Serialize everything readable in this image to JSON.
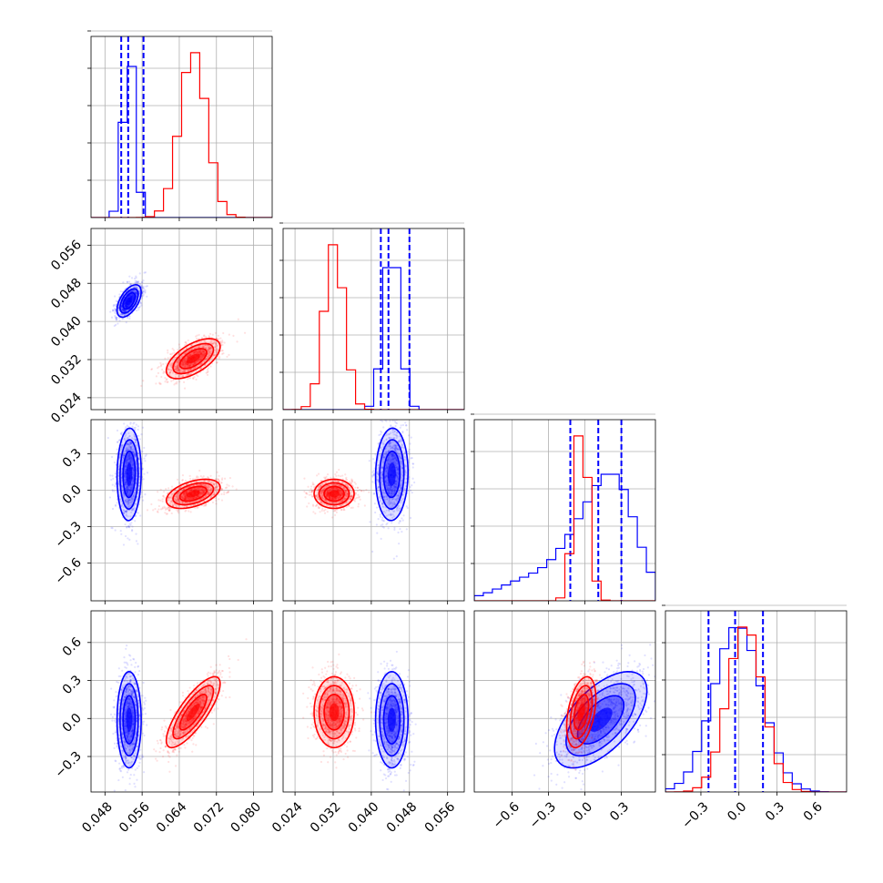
{
  "chart_data": {
    "type": "corner",
    "grid": true,
    "colors": {
      "blue": "#0000ff",
      "red": "#ff0000"
    },
    "params": [
      {
        "range": [
          0.045,
          0.084
        ],
        "ticks": [
          0.048,
          0.056,
          0.064,
          0.072,
          0.08
        ],
        "tick_labels": [
          "0.048",
          "0.056",
          "0.064",
          "0.072",
          "0.080"
        ]
      },
      {
        "range": [
          0.0215,
          0.0595
        ],
        "ticks": [
          0.024,
          0.032,
          0.04,
          0.048,
          0.056
        ],
        "tick_labels": [
          "0.024",
          "0.032",
          "0.040",
          "0.048",
          "0.056"
        ]
      },
      {
        "range": [
          -0.91,
          0.58
        ],
        "ticks": [
          -0.6,
          -0.3,
          0.0,
          0.3
        ],
        "tick_labels": [
          "−0.6",
          "−0.3",
          "0.0",
          "0.3"
        ]
      },
      {
        "range": [
          -0.58,
          0.85
        ],
        "ticks": [
          -0.3,
          0.0,
          0.3,
          0.6
        ],
        "tick_labels": [
          "−0.3",
          "0.0",
          "0.3",
          "0.6"
        ]
      }
    ],
    "series": [
      {
        "color": "blue",
        "mean": [
          0.0532,
          0.0443,
          0.13,
          -0.01
        ],
        "std": [
          0.0013,
          0.0017,
          0.19,
          0.19
        ],
        "corr": [
          [
            1,
            0.55,
            0.05,
            0.0
          ],
          [
            0.55,
            1,
            0.05,
            0.0
          ],
          [
            0.05,
            0.05,
            1,
            0.6
          ],
          [
            0.0,
            0.0,
            0.6,
            1
          ]
        ],
        "quantiles": [
          [
            0.0515,
            0.053,
            0.0563
          ],
          [
            0.042,
            0.0436,
            0.048
          ],
          [
            -0.12,
            0.11,
            0.3
          ],
          [
            -0.24,
            -0.03,
            0.19
          ]
        ]
      },
      {
        "color": "red",
        "mean": [
          0.067,
          0.0322,
          -0.03,
          0.05
        ],
        "std": [
          0.0029,
          0.0021,
          0.06,
          0.14
        ],
        "corr": [
          [
            1,
            0.6,
            0.45,
            0.8
          ],
          [
            0.6,
            1,
            0.0,
            0.0
          ],
          [
            0.45,
            0.0,
            1,
            0.4
          ],
          [
            0.8,
            0.0,
            0.4,
            1
          ]
        ],
        "quantiles": []
      }
    ]
  }
}
